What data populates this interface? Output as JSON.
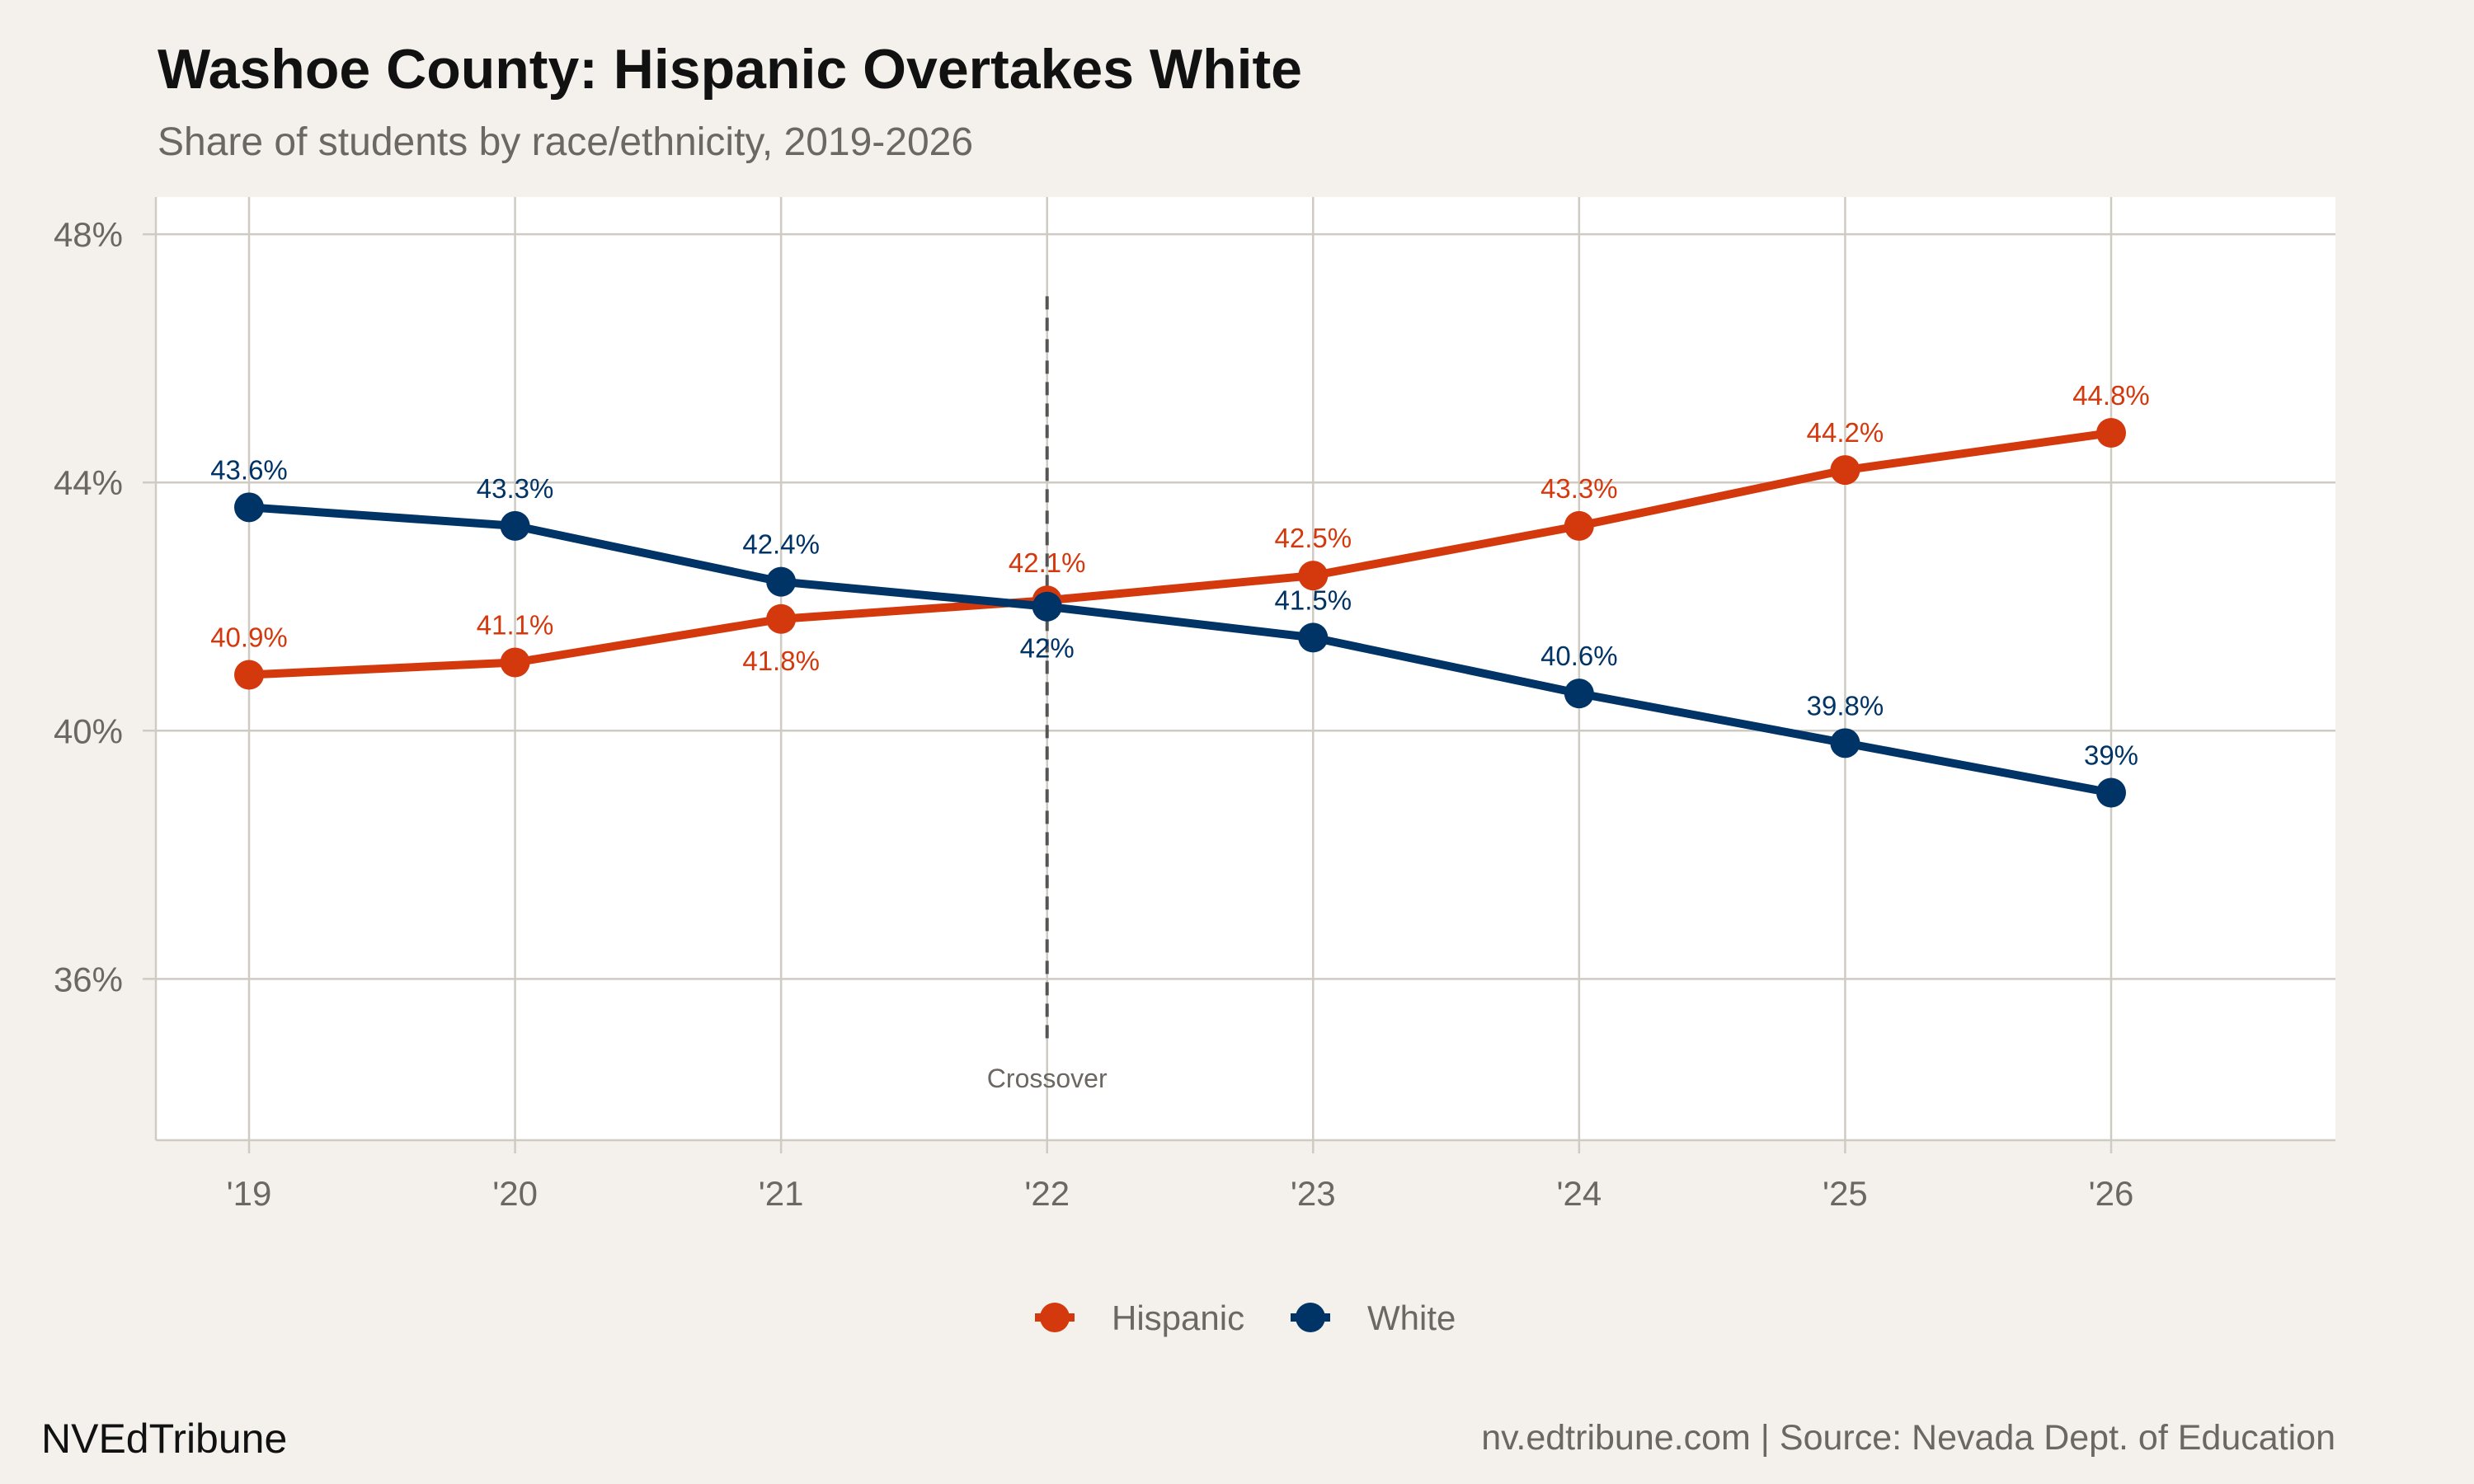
{
  "chart_data": {
    "type": "line",
    "title": "Washoe County: Hispanic Overtakes White",
    "subtitle": "Share of students by race/ethnicity, 2019-2026",
    "x": [
      "'19",
      "'20",
      "'21",
      "'22",
      "'23",
      "'24",
      "'25",
      "'26"
    ],
    "series": [
      {
        "name": "Hispanic",
        "color": "#d4380d",
        "values": [
          40.9,
          41.1,
          41.8,
          42.1,
          42.5,
          43.3,
          44.2,
          44.8
        ],
        "labels": [
          "40.9%",
          "41.1%",
          "41.8%",
          "42.1%",
          "42.5%",
          "43.3%",
          "44.2%",
          "44.8%"
        ]
      },
      {
        "name": "White",
        "color": "#003366",
        "values": [
          43.6,
          43.3,
          42.4,
          42.0,
          41.5,
          40.6,
          39.8,
          39.0
        ],
        "labels": [
          "43.6%",
          "43.3%",
          "42.4%",
          "42%",
          "41.5%",
          "40.6%",
          "39.8%",
          "39%"
        ]
      }
    ],
    "yticks": [
      36,
      40,
      44,
      48
    ],
    "ytick_labels": [
      "36%",
      "40%",
      "44%",
      "48%"
    ],
    "ylim": [
      33.4,
      48.6
    ],
    "grid": true,
    "legend_position": "bottom",
    "annotation": {
      "label": "Crossover",
      "x": "'22",
      "color": "#555555"
    }
  },
  "footer": {
    "brand": "NVEdTribune",
    "source": "nv.edtribune.com | Source: Nevada Dept. of Education"
  }
}
